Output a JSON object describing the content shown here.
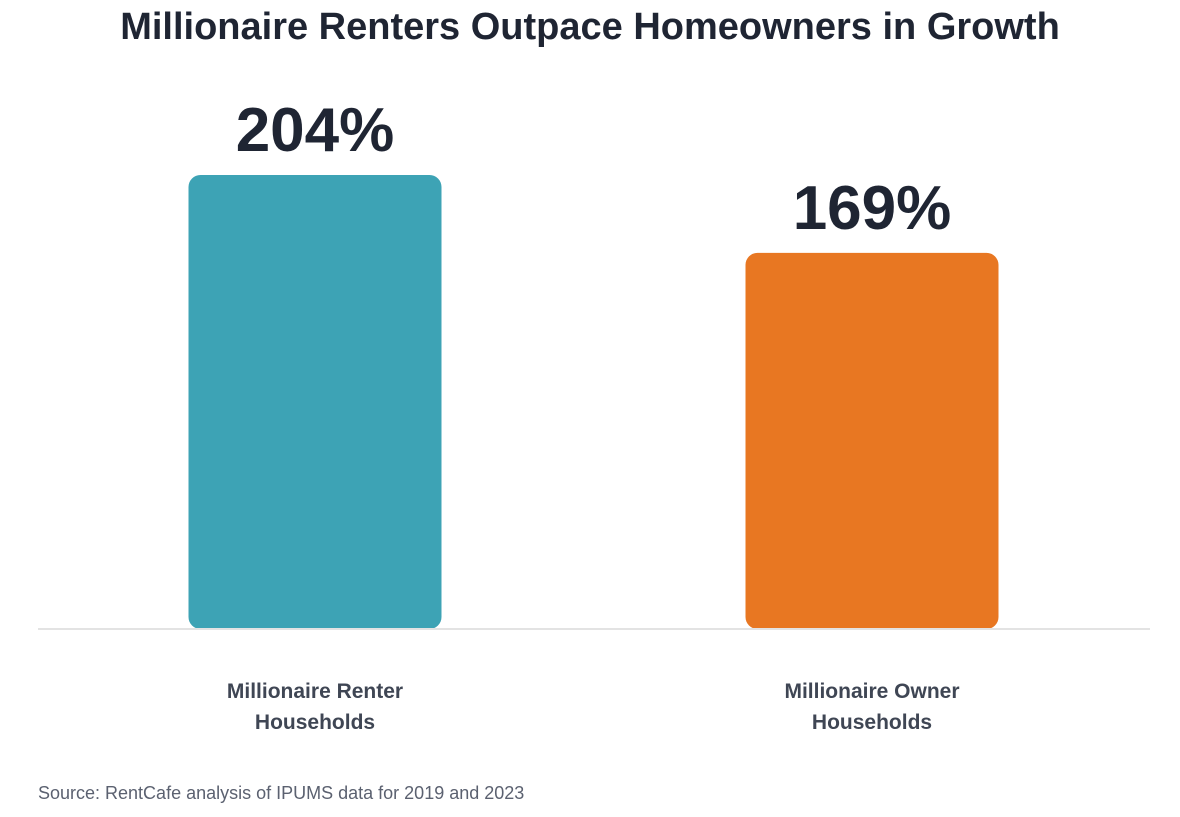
{
  "chart_data": {
    "type": "bar",
    "title": "Millionaire Renters Outpace Homeowners in Growth",
    "categories": [
      "Millionaire Renter\nHouseholds",
      "Millionaire Owner\nHouseholds"
    ],
    "values": [
      204,
      169
    ],
    "value_labels": [
      "204%",
      "169%"
    ],
    "colors": [
      "#3DA3B5",
      "#E87722"
    ],
    "xlabel": "",
    "ylabel": "",
    "ylim": [
      0,
      204
    ],
    "grid": false,
    "legend": "none"
  },
  "source": "Source: RentCafe analysis of IPUMS data for 2019 and 2023",
  "axis_color": "#e3e3e3"
}
